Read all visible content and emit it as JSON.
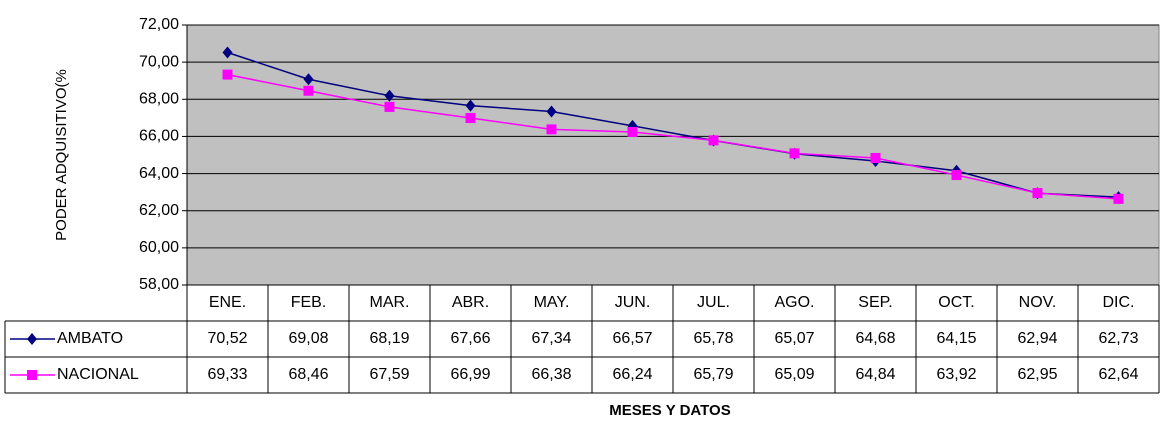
{
  "chart_data": {
    "type": "line",
    "y_label": "PODER ADQUISITIVO(%",
    "x_label": "MESES Y DATOS",
    "categories": [
      "ENE.",
      "FEB.",
      "MAR.",
      "ABR.",
      "MAY.",
      "JUN.",
      "JUL.",
      "AGO.",
      "SEP.",
      "OCT.",
      "NOV.",
      "DIC."
    ],
    "series": [
      {
        "name": "AMBATO",
        "color": "#000080",
        "marker": "diamond",
        "values": [
          70.52,
          69.08,
          68.19,
          67.66,
          67.34,
          66.57,
          65.78,
          65.07,
          64.68,
          64.15,
          62.94,
          62.73
        ],
        "value_labels": [
          "70,52",
          "69,08",
          "68,19",
          "67,66",
          "67,34",
          "66,57",
          "65,78",
          "65,07",
          "64,68",
          "64,15",
          "62,94",
          "62,73"
        ]
      },
      {
        "name": "NACIONAL",
        "color": "#ff00ff",
        "marker": "square",
        "values": [
          69.33,
          68.46,
          67.59,
          66.99,
          66.38,
          66.24,
          65.79,
          65.09,
          64.84,
          63.92,
          62.95,
          62.64
        ],
        "value_labels": [
          "69,33",
          "68,46",
          "67,59",
          "66,99",
          "66,38",
          "66,24",
          "65,79",
          "65,09",
          "64,84",
          "63,92",
          "62,95",
          "62,64"
        ]
      }
    ],
    "ylim": [
      58,
      72
    ],
    "yticks": [
      {
        "value": 58,
        "label": "58,00"
      },
      {
        "value": 60,
        "label": "60,00"
      },
      {
        "value": 62,
        "label": "62,00"
      },
      {
        "value": 64,
        "label": "64,00"
      },
      {
        "value": 66,
        "label": "66,00"
      },
      {
        "value": 68,
        "label": "68,00"
      },
      {
        "value": 70,
        "label": "70,00"
      },
      {
        "value": 72,
        "label": "72,00"
      }
    ],
    "grid": true,
    "plot_background": "#c0c0c0"
  }
}
